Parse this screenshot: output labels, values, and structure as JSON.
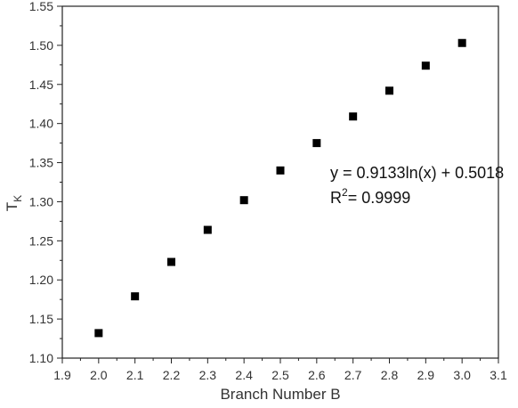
{
  "chart_data": {
    "type": "scatter",
    "title": "",
    "xlabel": "Branch Number B",
    "ylabel_main": "T",
    "ylabel_sub": "K",
    "xlim": [
      1.9,
      3.1
    ],
    "ylim": [
      1.1,
      1.55
    ],
    "x_ticks": [
      "1.9",
      "2.0",
      "2.1",
      "2.2",
      "2.3",
      "2.4",
      "2.5",
      "2.6",
      "2.7",
      "2.8",
      "2.9",
      "3.0",
      "3.1"
    ],
    "y_ticks": [
      "1.10",
      "1.15",
      "1.20",
      "1.25",
      "1.30",
      "1.35",
      "1.40",
      "1.45",
      "1.50",
      "1.55"
    ],
    "x": [
      2.0,
      2.1,
      2.2,
      2.3,
      2.4,
      2.5,
      2.6,
      2.7,
      2.8,
      2.9,
      3.0
    ],
    "y": [
      1.132,
      1.179,
      1.223,
      1.264,
      1.302,
      1.34,
      1.375,
      1.409,
      1.442,
      1.474,
      1.503
    ],
    "marker": "square",
    "marker_color": "#000000",
    "grid": false,
    "annotations": {
      "equation": "y = 0.9133ln(x) + 0.5018",
      "r2_prefix": "R",
      "r2_sup": "2",
      "r2_value": "= 0.9999"
    }
  }
}
